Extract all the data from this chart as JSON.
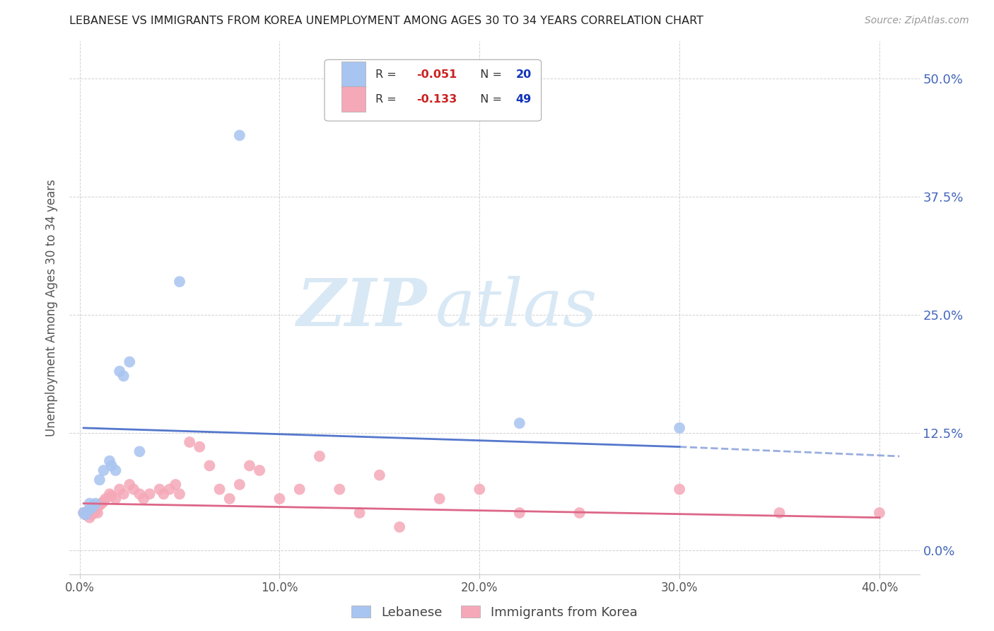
{
  "title": "LEBANESE VS IMMIGRANTS FROM KOREA UNEMPLOYMENT AMONG AGES 30 TO 34 YEARS CORRELATION CHART",
  "source": "Source: ZipAtlas.com",
  "xlabel_ticks": [
    "0.0%",
    "10.0%",
    "20.0%",
    "30.0%",
    "40.0%"
  ],
  "xlabel_tick_vals": [
    0.0,
    0.1,
    0.2,
    0.3,
    0.4
  ],
  "ylabel_ticks": [
    "0.0%",
    "12.5%",
    "25.0%",
    "37.5%",
    "50.0%"
  ],
  "ylabel_tick_vals": [
    0.0,
    0.125,
    0.25,
    0.375,
    0.5
  ],
  "ylabel_label": "Unemployment Among Ages 30 to 34 years",
  "legend_bottom": [
    "Lebanese",
    "Immigrants from Korea"
  ],
  "xlim": [
    -0.005,
    0.42
  ],
  "ylim": [
    -0.025,
    0.54
  ],
  "blue_color": "#a8c4f0",
  "pink_color": "#f5a8b8",
  "blue_line_color": "#5577cc",
  "pink_line_color": "#dd6688",
  "right_axis_color": "#4466bb",
  "lebanese_x": [
    0.002,
    0.003,
    0.004,
    0.005,
    0.006,
    0.007,
    0.008,
    0.01,
    0.012,
    0.015,
    0.016,
    0.018,
    0.02,
    0.022,
    0.025,
    0.03,
    0.05,
    0.08,
    0.22,
    0.3
  ],
  "lebanese_y": [
    0.04,
    0.038,
    0.042,
    0.05,
    0.045,
    0.048,
    0.05,
    0.075,
    0.085,
    0.095,
    0.09,
    0.085,
    0.19,
    0.185,
    0.2,
    0.105,
    0.285,
    0.44,
    0.135,
    0.13
  ],
  "korea_x": [
    0.002,
    0.003,
    0.004,
    0.005,
    0.006,
    0.007,
    0.008,
    0.009,
    0.01,
    0.011,
    0.012,
    0.013,
    0.015,
    0.016,
    0.018,
    0.02,
    0.022,
    0.025,
    0.027,
    0.03,
    0.032,
    0.035,
    0.04,
    0.042,
    0.045,
    0.048,
    0.05,
    0.055,
    0.06,
    0.065,
    0.07,
    0.075,
    0.08,
    0.085,
    0.09,
    0.1,
    0.11,
    0.12,
    0.13,
    0.14,
    0.15,
    0.16,
    0.18,
    0.2,
    0.22,
    0.25,
    0.3,
    0.35,
    0.4
  ],
  "korea_y": [
    0.04,
    0.038,
    0.04,
    0.035,
    0.038,
    0.04,
    0.042,
    0.04,
    0.048,
    0.05,
    0.052,
    0.055,
    0.06,
    0.058,
    0.055,
    0.065,
    0.06,
    0.07,
    0.065,
    0.06,
    0.055,
    0.06,
    0.065,
    0.06,
    0.065,
    0.07,
    0.06,
    0.115,
    0.11,
    0.09,
    0.065,
    0.055,
    0.07,
    0.09,
    0.085,
    0.055,
    0.065,
    0.1,
    0.065,
    0.04,
    0.08,
    0.025,
    0.055,
    0.065,
    0.04,
    0.04,
    0.065,
    0.04,
    0.04
  ],
  "leb_line_x0": 0.002,
  "leb_line_x1": 0.3,
  "leb_line_x_dash": 0.41,
  "leb_line_y0": 0.13,
  "leb_line_y1": 0.11,
  "leb_line_y_dash": 0.1,
  "kor_line_x0": 0.002,
  "kor_line_x1": 0.4,
  "kor_line_y0": 0.05,
  "kor_line_y1": 0.035,
  "watermark_zip": "ZIP",
  "watermark_atlas": "atlas",
  "watermark_color": "#d8e8f5"
}
